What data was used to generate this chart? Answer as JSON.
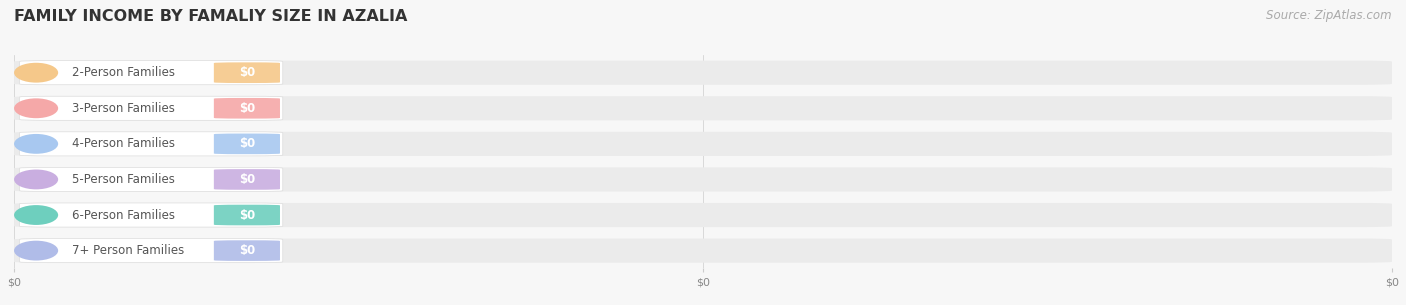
{
  "title": "FAMILY INCOME BY FAMALIY SIZE IN AZALIA",
  "source_text": "Source: ZipAtlas.com",
  "categories": [
    "2-Person Families",
    "3-Person Families",
    "4-Person Families",
    "5-Person Families",
    "6-Person Families",
    "7+ Person Families"
  ],
  "values": [
    0,
    0,
    0,
    0,
    0,
    0
  ],
  "bar_colors": [
    "#f5c88a",
    "#f5a8a8",
    "#a8c8f0",
    "#c9aee0",
    "#6ecfbe",
    "#b0bce8"
  ],
  "value_labels": [
    "$0",
    "$0",
    "$0",
    "$0",
    "$0",
    "$0"
  ],
  "x_tick_positions": [
    0.0,
    0.5,
    1.0
  ],
  "x_tick_labels": [
    "$0",
    "$0",
    "$0"
  ],
  "background_color": "#f7f7f7",
  "track_color": "#ebebeb",
  "pill_bg_color": "#ffffff",
  "title_fontsize": 11.5,
  "label_fontsize": 8.5,
  "value_fontsize": 8.5,
  "source_fontsize": 8.5,
  "xlim": [
    0,
    1
  ],
  "figsize": [
    14.06,
    3.05
  ],
  "dpi": 100
}
